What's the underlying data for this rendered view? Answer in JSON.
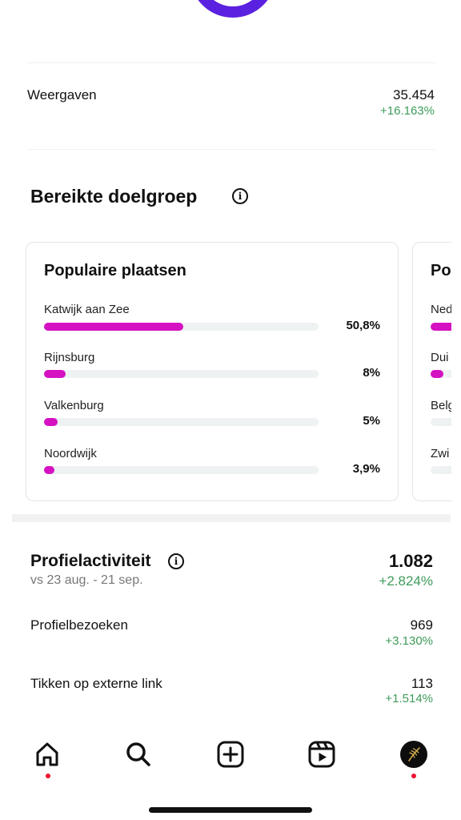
{
  "views": {
    "label": "Weergaven",
    "value": "35.454",
    "delta": "+16.163%"
  },
  "audience": {
    "title": "Bereikte doelgroep",
    "cards": [
      {
        "title": "Populaire plaatsen",
        "items": [
          {
            "label": "Katwijk aan Zee",
            "pct": "50,8%",
            "fraction": 0.508
          },
          {
            "label": "Rijnsburg",
            "pct": "8%",
            "fraction": 0.08
          },
          {
            "label": "Valkenburg",
            "pct": "5%",
            "fraction": 0.05
          },
          {
            "label": "Noordwijk",
            "pct": "3,9%",
            "fraction": 0.039
          }
        ]
      },
      {
        "title": "Po",
        "items": [
          {
            "label": "Ned",
            "fraction": 1.0
          },
          {
            "label": "Dui",
            "fraction": 0.1
          },
          {
            "label": "Belg",
            "fraction": 0.0
          },
          {
            "label": "Zwi",
            "fraction": 0.0
          }
        ]
      }
    ]
  },
  "profile": {
    "title": "Profielactiviteit",
    "subtitle": "vs 23 aug. - 21 sep.",
    "value": "1.082",
    "delta": "+2.824%",
    "rows": [
      {
        "label": "Profielbezoeken",
        "value": "969",
        "delta": "+3.130%"
      },
      {
        "label": "Tikken op externe link",
        "value": "113",
        "delta": "+1.514%"
      }
    ]
  },
  "nav": {
    "items": [
      "home-icon",
      "search-icon",
      "create-icon",
      "reels-icon",
      "profile-avatar"
    ],
    "notification_color": "#ee1133"
  },
  "colors": {
    "accent": "#d511c2",
    "positive": "#3e9b5a",
    "ring": "#5b21e0"
  }
}
